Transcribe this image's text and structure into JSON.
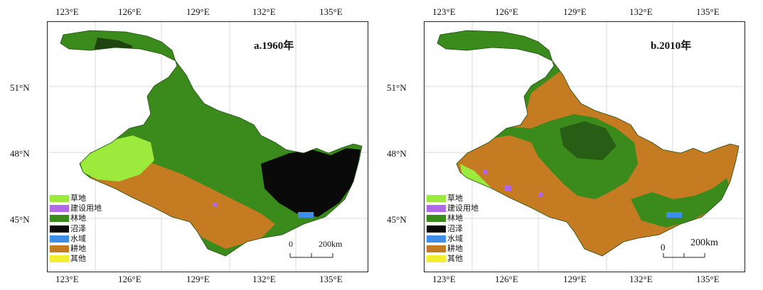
{
  "legend": [
    {
      "label": "草地",
      "color": "#9bea3c"
    },
    {
      "label": "建设用地",
      "color": "#b169e8"
    },
    {
      "label": "林地",
      "color": "#3a8a1c"
    },
    {
      "label": "沼泽",
      "color": "#0a0a0a"
    },
    {
      "label": "水域",
      "color": "#3d8ee6"
    },
    {
      "label": "耕地",
      "color": "#c47b22"
    },
    {
      "label": "其他",
      "color": "#f2ee30"
    }
  ],
  "axes": {
    "longitudes": [
      "123°E",
      "126°E",
      "129°E",
      "132°E",
      "135°E"
    ],
    "latitudes": [
      "51°N",
      "48°N",
      "45°N"
    ]
  },
  "panels": [
    {
      "title": "a.1960年",
      "scale": {
        "zero": "0",
        "distance": "200km"
      },
      "dominant_class": "林地",
      "map_colors": {
        "base": "#3a8a1c",
        "patch": "#c47b22",
        "dark": "#0a0a0a",
        "light": "#9bea3c"
      }
    },
    {
      "title": "b.2010年",
      "scale": {
        "zero": "0",
        "distance": "200km"
      },
      "dominant_class": "耕地",
      "map_colors": {
        "base": "#c47b22",
        "patch": "#3a8a1c",
        "dark": "#0a0a0a",
        "light": "#9bea3c"
      }
    }
  ]
}
